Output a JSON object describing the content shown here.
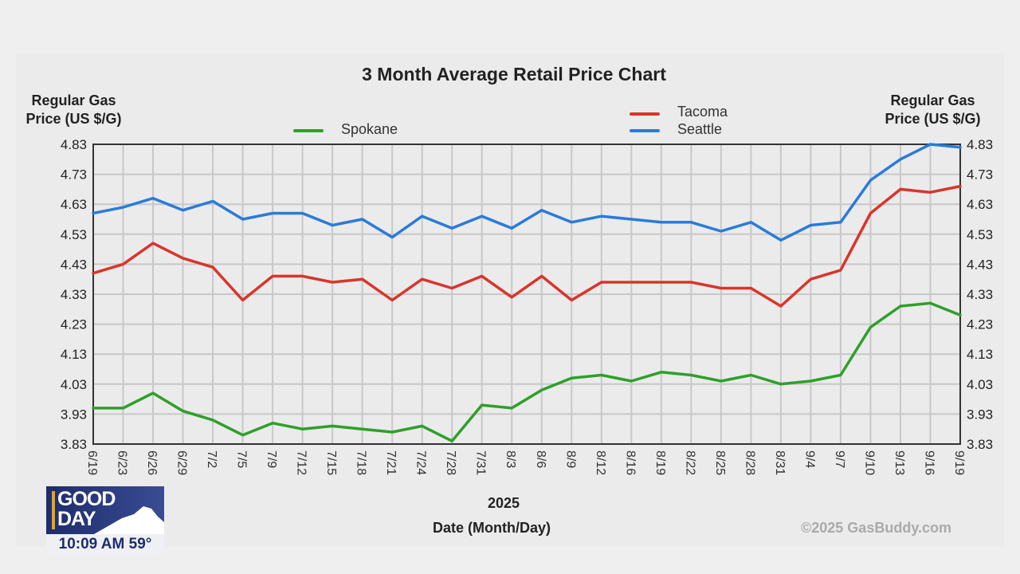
{
  "chart_data": {
    "type": "line",
    "title": "3 Month Average Retail Price Chart",
    "ylabel_left": [
      "Regular Gas",
      "Price (US $/G)"
    ],
    "ylabel_right": [
      "Regular Gas",
      "Price (US $/G)"
    ],
    "xlabel": "Date (Month/Day)",
    "xlabel_year": "2025",
    "ylim": [
      3.83,
      4.83
    ],
    "yticks": [
      "4.83",
      "4.73",
      "4.63",
      "4.53",
      "4.43",
      "4.33",
      "4.23",
      "4.13",
      "4.03",
      "3.93",
      "3.83"
    ],
    "grid": true,
    "legend_placement": "top",
    "categories": [
      "6/19",
      "6/23",
      "6/26",
      "6/29",
      "7/2",
      "7/5",
      "7/9",
      "7/12",
      "7/15",
      "7/18",
      "7/21",
      "7/24",
      "7/28",
      "7/31",
      "8/3",
      "8/6",
      "8/9",
      "8/12",
      "8/16",
      "8/19",
      "8/22",
      "8/25",
      "8/28",
      "8/31",
      "9/4",
      "9/7",
      "9/10",
      "9/13",
      "9/16",
      "9/19"
    ],
    "series": [
      {
        "name": "Tacoma",
        "color": "#d9352b",
        "values": [
          4.4,
          4.43,
          4.5,
          4.45,
          4.42,
          4.31,
          4.39,
          4.39,
          4.37,
          4.38,
          4.31,
          4.38,
          4.35,
          4.39,
          4.32,
          4.39,
          4.31,
          4.37,
          4.37,
          4.37,
          4.37,
          4.35,
          4.35,
          4.29,
          4.38,
          4.41,
          4.6,
          4.68,
          4.67,
          4.69
        ]
      },
      {
        "name": "Seattle",
        "color": "#2b7bd9",
        "values": [
          4.6,
          4.62,
          4.65,
          4.61,
          4.64,
          4.58,
          4.6,
          4.6,
          4.56,
          4.58,
          4.52,
          4.59,
          4.55,
          4.59,
          4.55,
          4.61,
          4.57,
          4.59,
          4.58,
          4.57,
          4.57,
          4.54,
          4.57,
          4.51,
          4.56,
          4.57,
          4.71,
          4.78,
          4.83,
          4.82
        ]
      },
      {
        "name": "Spokane",
        "color": "#2ea02a",
        "values": [
          3.95,
          3.95,
          4.0,
          3.94,
          3.91,
          3.86,
          3.9,
          3.88,
          3.89,
          3.88,
          3.87,
          3.89,
          3.84,
          3.96,
          3.95,
          4.01,
          4.05,
          4.06,
          4.04,
          4.07,
          4.06,
          4.04,
          4.06,
          4.03,
          4.04,
          4.06,
          4.22,
          4.29,
          4.3,
          4.26
        ]
      }
    ]
  },
  "watermark": "©2025 GasBuddy.com",
  "overlay": {
    "logo_text": [
      "GOOD",
      "DAY"
    ],
    "time": "10:09 AM",
    "temperature": "59°"
  }
}
